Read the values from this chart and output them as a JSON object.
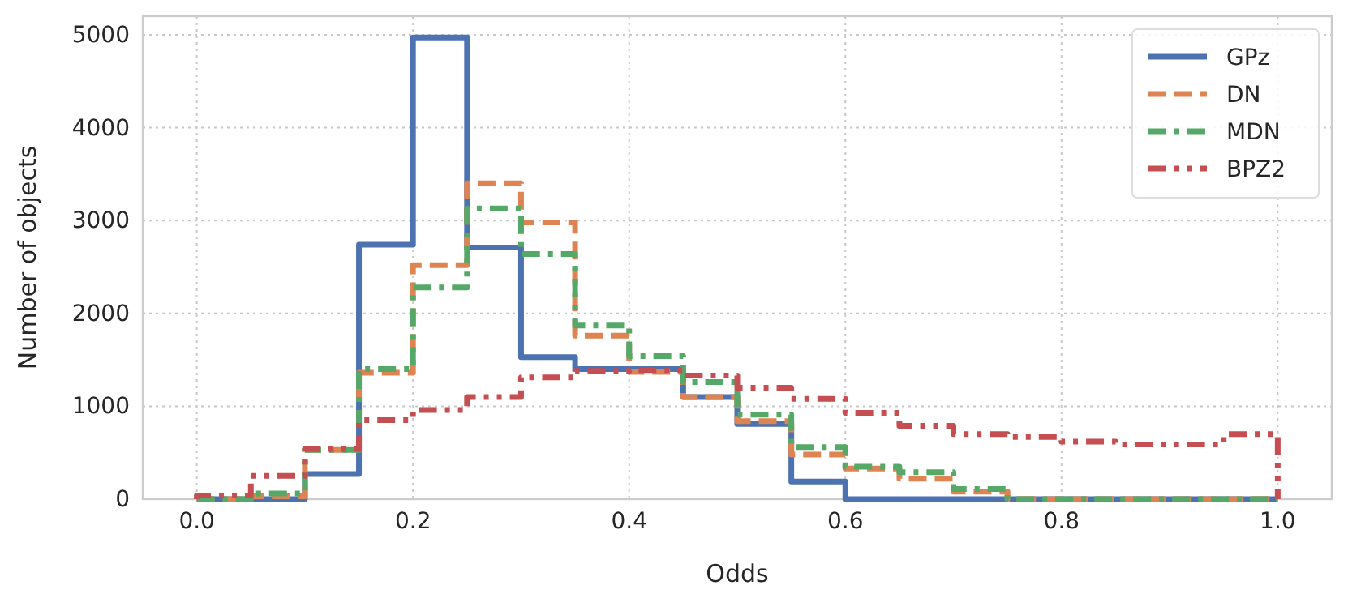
{
  "chart_data": {
    "type": "histogram",
    "xlabel": "Odds",
    "ylabel": "Number of objects",
    "bins": [
      0,
      0.05,
      0.1,
      0.15,
      0.2,
      0.25,
      0.3,
      0.35,
      0.4,
      0.45,
      0.5,
      0.55,
      0.6,
      0.65,
      0.7,
      0.75,
      0.8,
      0.85,
      0.9,
      0.95,
      1.0
    ],
    "series": [
      {
        "name": "GPz",
        "color": "#4c72b0",
        "line_style": "solid",
        "values": [
          0,
          0,
          270,
          2740,
          4970,
          2710,
          1530,
          1400,
          1400,
          1100,
          810,
          190,
          0,
          0,
          0,
          0,
          0,
          0,
          0,
          0
        ]
      },
      {
        "name": "DN",
        "color": "#dd8452",
        "line_style": "dashed",
        "values": [
          0,
          30,
          530,
          1360,
          2520,
          3400,
          2980,
          1760,
          1370,
          1100,
          840,
          480,
          330,
          220,
          80,
          0,
          0,
          0,
          0,
          0
        ]
      },
      {
        "name": "MDN",
        "color": "#55a868",
        "line_style": "dashdot",
        "values": [
          0,
          60,
          530,
          1400,
          2280,
          3130,
          2640,
          1870,
          1540,
          1260,
          910,
          560,
          350,
          290,
          110,
          0,
          0,
          0,
          0,
          0
        ]
      },
      {
        "name": "BPZ2",
        "color": "#c44e52",
        "line_style": "dashdotdot",
        "values": [
          40,
          250,
          540,
          850,
          960,
          1100,
          1310,
          1380,
          1390,
          1330,
          1200,
          1080,
          930,
          790,
          700,
          670,
          620,
          590,
          590,
          700
        ]
      }
    ],
    "xlim": [
      -0.05,
      1.05
    ],
    "xticks": [
      {
        "value": 0,
        "label": "0.0"
      },
      0.2,
      0.4,
      0.6,
      0.8,
      {
        "value": 1,
        "label": "1.0"
      }
    ],
    "ylim": [
      0,
      5200
    ],
    "yticks": [
      0,
      1000,
      2000,
      3000,
      4000,
      5000
    ],
    "grid": true,
    "legend": "top right"
  }
}
